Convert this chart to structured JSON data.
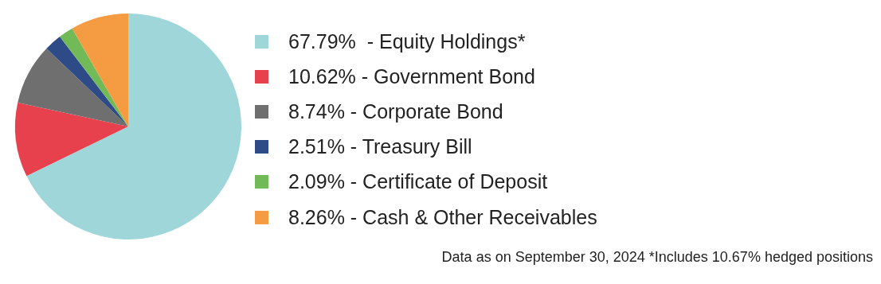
{
  "chart_data": {
    "type": "pie",
    "categories": [
      "- Equity Holdings*",
      "- Government Bond",
      "- Corporate Bond",
      "- Treasury Bill",
      "- Certificate of Deposit",
      "- Cash & Other Receivables"
    ],
    "values": [
      67.79,
      10.62,
      8.74,
      2.51,
      2.09,
      8.26
    ],
    "value_labels": [
      "67.79% ",
      "10.62%",
      "8.74%",
      "2.51%",
      "2.09%",
      "8.26%"
    ],
    "colors": [
      "#9fd6d9",
      "#e8414e",
      "#6f6f6f",
      "#2e4a87",
      "#72b957",
      "#f59b42"
    ],
    "legend": "right",
    "annotations": [
      "Data as on September 30, 2024 *Includes 10.67% hedged positions"
    ]
  }
}
